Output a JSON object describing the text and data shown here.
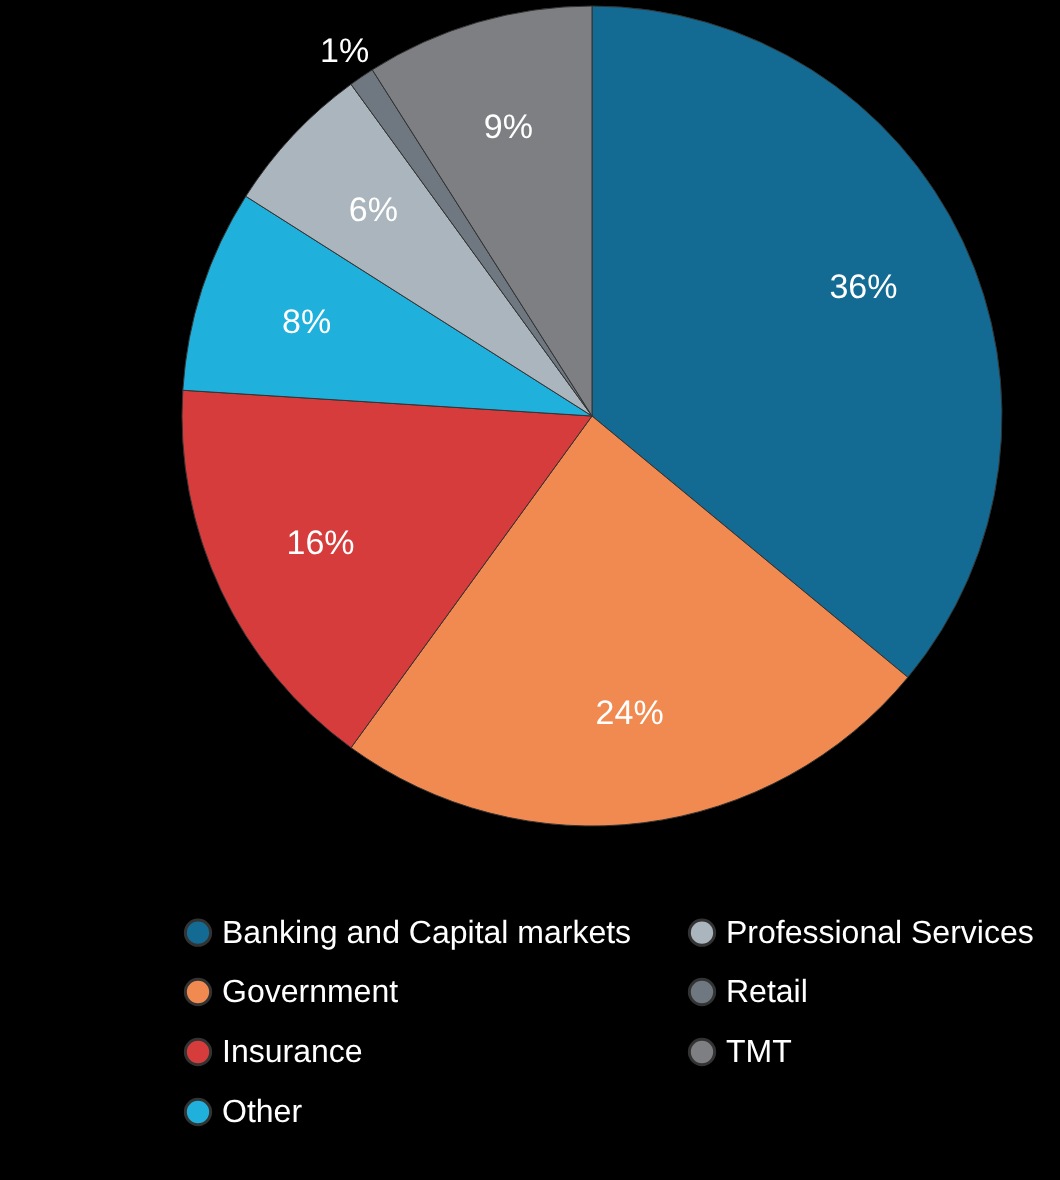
{
  "chart_data": {
    "type": "pie",
    "categories": [
      "Banking and Capital markets",
      "Government",
      "Insurance",
      "Other",
      "Professional Services",
      "Retail",
      "TMT"
    ],
    "values": [
      36,
      24,
      16,
      8,
      6,
      1,
      9
    ],
    "colors": [
      "#136a93",
      "#f08a50",
      "#d63c3c",
      "#1fb0dc",
      "#aab5bd",
      "#6f7880",
      "#7e7f83"
    ],
    "value_labels": [
      "36%",
      "24%",
      "16%",
      "8%",
      "6%",
      "1%",
      "9%"
    ],
    "legend": "bottom"
  }
}
